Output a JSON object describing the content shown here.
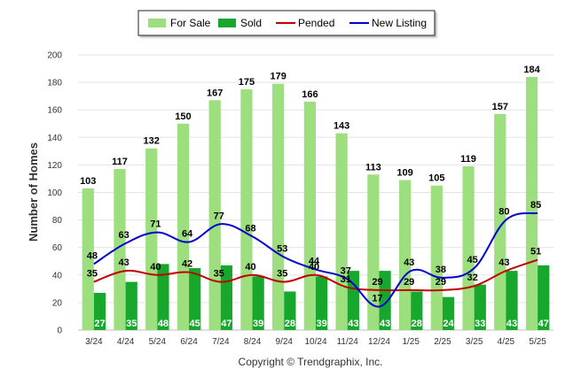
{
  "chart_data": {
    "type": "bar",
    "categories": [
      "3/24",
      "4/24",
      "5/24",
      "6/24",
      "7/24",
      "8/24",
      "9/24",
      "10/24",
      "11/24",
      "12/24",
      "1/25",
      "2/25",
      "3/25",
      "4/25",
      "5/25"
    ],
    "series": [
      {
        "name": "For Sale",
        "type": "bar",
        "color": "#9dde7e",
        "values": [
          103,
          117,
          132,
          150,
          167,
          175,
          179,
          166,
          143,
          113,
          109,
          105,
          119,
          157,
          184
        ]
      },
      {
        "name": "Sold",
        "type": "bar",
        "color": "#17a72d",
        "values": [
          27,
          35,
          48,
          45,
          47,
          39,
          28,
          39,
          43,
          43,
          28,
          24,
          33,
          43,
          47
        ]
      },
      {
        "name": "Pended",
        "type": "line",
        "color": "#c00000",
        "values": [
          35,
          43,
          40,
          42,
          35,
          40,
          35,
          40,
          31,
          29,
          29,
          29,
          32,
          43,
          51
        ]
      },
      {
        "name": "New Listing",
        "type": "line",
        "color": "#0000d0",
        "values": [
          48,
          63,
          71,
          64,
          77,
          68,
          53,
          44,
          37,
          17,
          43,
          38,
          45,
          80,
          85
        ]
      }
    ],
    "ylabel": "Number of Homes",
    "xlabel": "",
    "ylim": [
      0,
      200
    ],
    "yticks": [
      "0",
      "20",
      "40",
      "60",
      "80",
      "100",
      "120",
      "140",
      "160",
      "180",
      "200"
    ],
    "grid": true,
    "legend_position": "top"
  },
  "footer": "Copyright © Trendgraphix, Inc."
}
